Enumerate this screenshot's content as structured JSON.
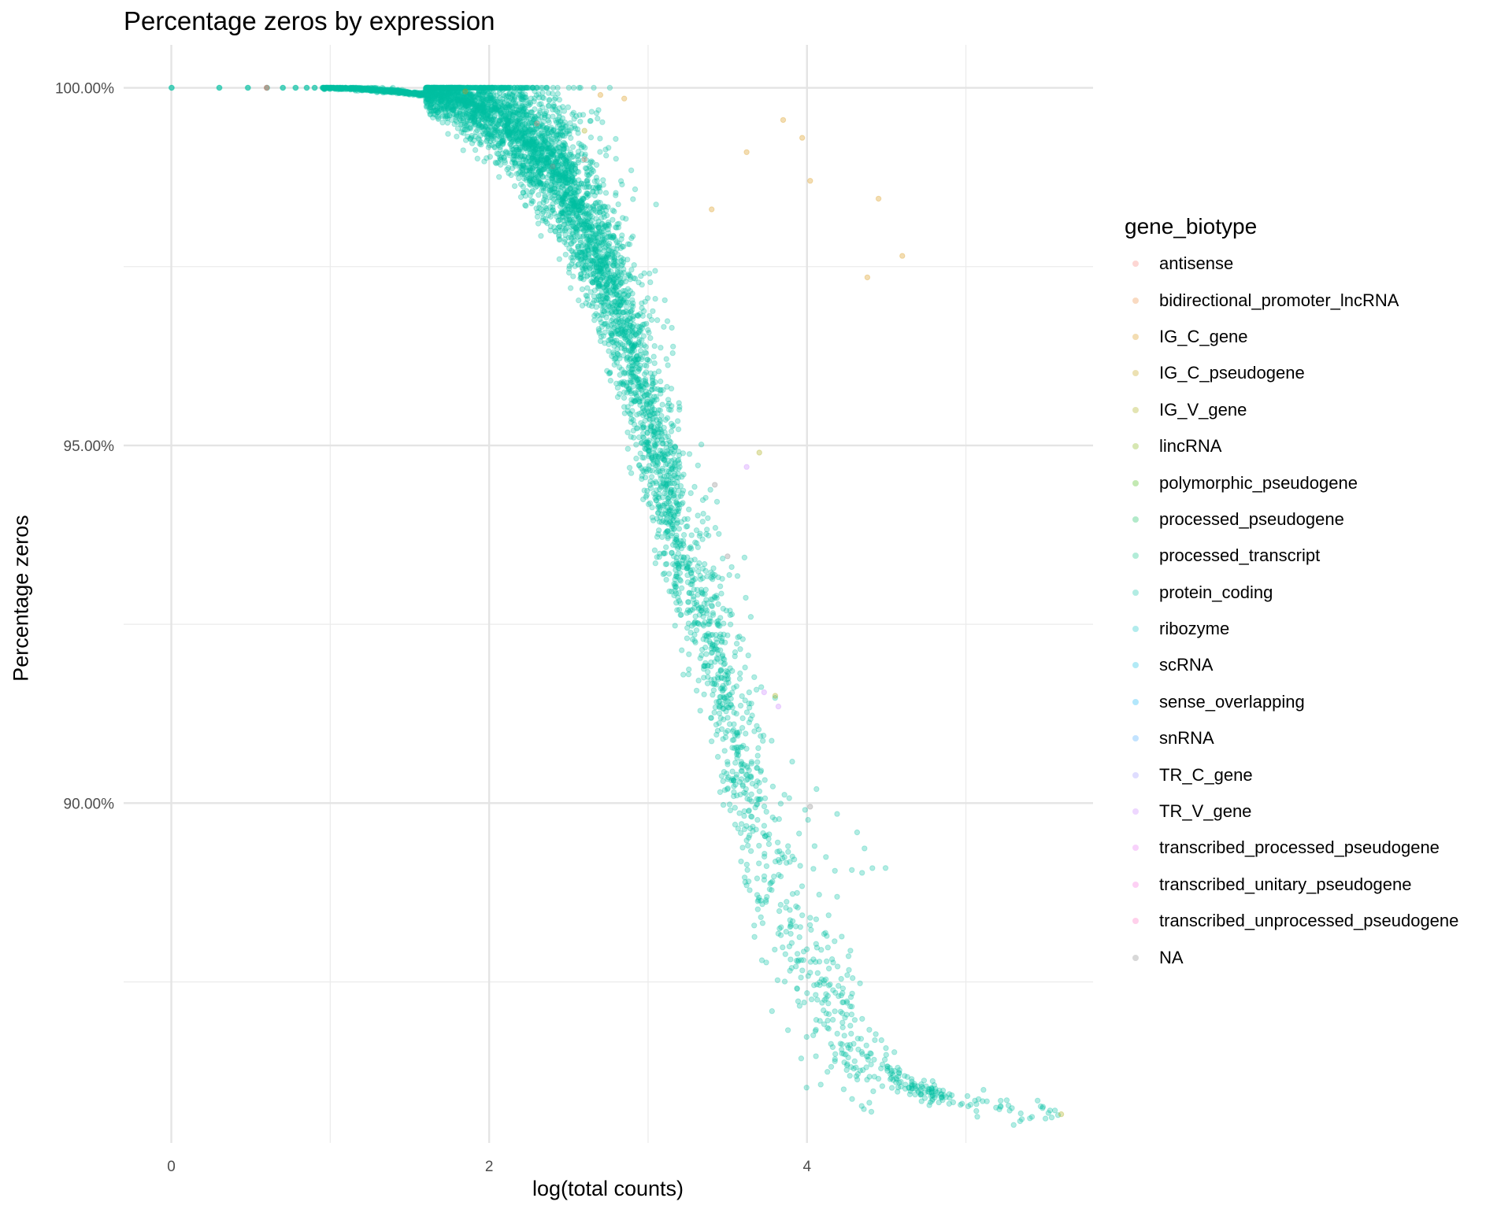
{
  "chart_data": {
    "type": "scatter",
    "title": "Percentage zeros by expression",
    "xlabel": "log(total counts)",
    "ylabel": "Percentage zeros",
    "xlim": [
      -0.3,
      5.8
    ],
    "ylim": [
      85.25,
      100.6
    ],
    "x_ticks": [
      0,
      2,
      4
    ],
    "x_tick_labels": [
      "0",
      "2",
      "4"
    ],
    "x_minor_ticks": [
      1,
      3,
      5
    ],
    "y_ticks": [
      90,
      95,
      100
    ],
    "y_tick_labels": [
      "90.00%",
      "95.00%",
      "100.00%"
    ],
    "y_minor_ticks": [
      87.5,
      92.5,
      97.5
    ],
    "grid": true,
    "point_alpha": 0.3,
    "legend": {
      "title": "gene_biotype",
      "placement": "right",
      "entries": [
        {
          "name": "antisense",
          "color": "#F8766D"
        },
        {
          "name": "bidirectional_promoter_lncRNA",
          "color": "#EA8331"
        },
        {
          "name": "IG_C_gene",
          "color": "#D89000"
        },
        {
          "name": "IG_C_pseudogene",
          "color": "#C09B00"
        },
        {
          "name": "IG_V_gene",
          "color": "#A3A500"
        },
        {
          "name": "lincRNA",
          "color": "#7CAE00"
        },
        {
          "name": "polymorphic_pseudogene",
          "color": "#39B600"
        },
        {
          "name": "processed_pseudogene",
          "color": "#00BB4E"
        },
        {
          "name": "processed_transcript",
          "color": "#00BF7D"
        },
        {
          "name": "protein_coding",
          "color": "#00C1A3"
        },
        {
          "name": "ribozyme",
          "color": "#00BFC4"
        },
        {
          "name": "scRNA",
          "color": "#00BAE0"
        },
        {
          "name": "sense_overlapping",
          "color": "#00B0F6"
        },
        {
          "name": "snRNA",
          "color": "#35A2FF"
        },
        {
          "name": "TR_C_gene",
          "color": "#9590FF"
        },
        {
          "name": "TR_V_gene",
          "color": "#C77CFF"
        },
        {
          "name": "transcribed_processed_pseudogene",
          "color": "#E76BF3"
        },
        {
          "name": "transcribed_unitary_pseudogene",
          "color": "#FA62DB"
        },
        {
          "name": "transcribed_unprocessed_pseudogene",
          "color": "#FF62BC"
        },
        {
          "name": "NA",
          "color": "#7F7F7F"
        }
      ]
    },
    "main_trend": {
      "series": "protein_coding",
      "x": [
        0,
        0.3,
        0.5,
        0.7,
        0.9,
        1.0,
        1.2,
        1.4,
        1.6,
        1.8,
        2.0,
        2.2,
        2.4,
        2.6,
        2.8,
        3.0,
        3.2,
        3.4,
        3.6,
        3.8,
        4.0,
        4.2,
        4.4,
        4.6,
        4.8,
        5.0,
        5.2,
        5.4,
        5.6
      ],
      "y": [
        100.0,
        100.0,
        100.0,
        100.0,
        100.0,
        100.0,
        99.98,
        99.95,
        99.9,
        99.8,
        99.6,
        99.3,
        98.8,
        98.0,
        96.9,
        95.3,
        93.6,
        92.0,
        90.3,
        89.0,
        87.8,
        86.9,
        86.4,
        86.1,
        85.9,
        85.8,
        85.75,
        85.7,
        85.7
      ]
    },
    "highlighted_points": [
      {
        "series": "IG_C_gene",
        "x": [
          3.85,
          3.97,
          4.02,
          4.45,
          4.6,
          4.38,
          3.62,
          3.4,
          2.85,
          2.7,
          1.85
        ],
        "y": [
          99.55,
          99.3,
          98.7,
          98.45,
          97.65,
          97.35,
          99.1,
          98.3,
          99.85,
          99.9,
          99.95
        ]
      },
      {
        "series": "antisense",
        "x": [
          0.6,
          0.6,
          2.3,
          2.6
        ],
        "y": [
          100.0,
          100.0,
          99.5,
          99.0
        ]
      },
      {
        "series": "IG_V_gene",
        "x": [
          3.7,
          3.8,
          5.6,
          2.6
        ],
        "y": [
          94.9,
          91.5,
          85.65,
          99.4
        ]
      },
      {
        "series": "TR_V_gene",
        "x": [
          3.62,
          3.73,
          3.82
        ],
        "y": [
          94.7,
          91.55,
          91.35
        ]
      },
      {
        "series": "NA",
        "x": [
          4.02,
          3.42,
          3.5,
          2.4
        ],
        "y": [
          89.95,
          94.45,
          93.45,
          98.9
        ]
      }
    ]
  }
}
